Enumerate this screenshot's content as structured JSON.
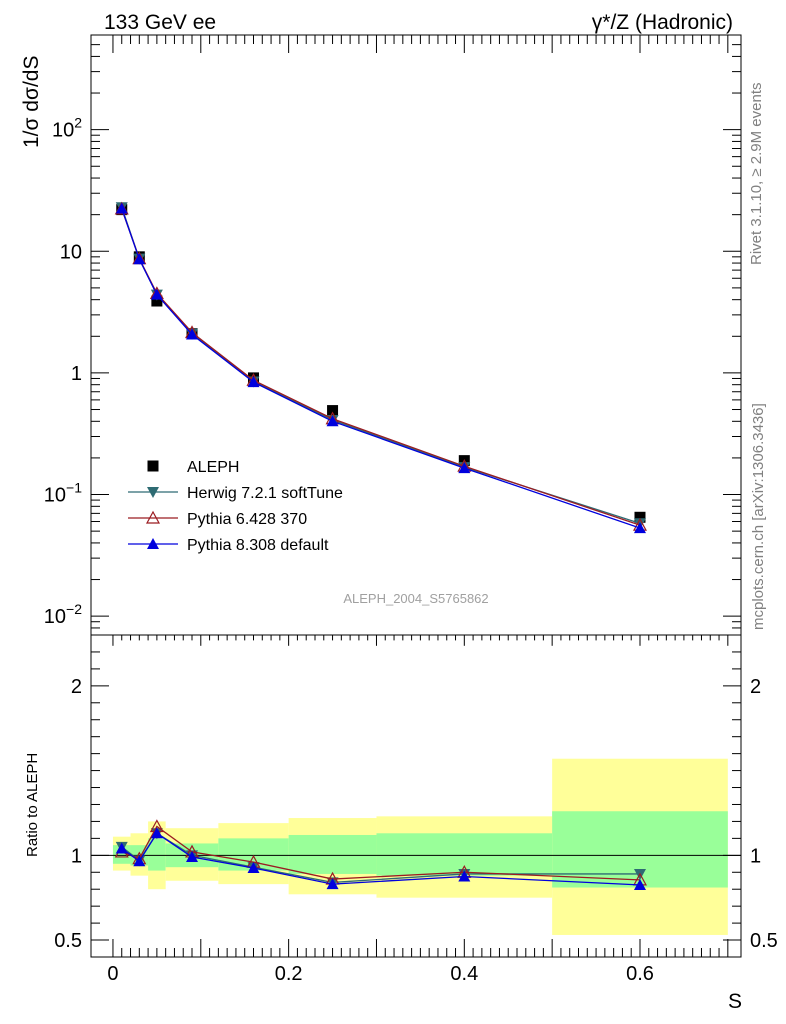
{
  "header": {
    "left_title": "133 GeV ee",
    "right_title": "γ*/Z (Hadronic)"
  },
  "side_labels": {
    "rivet": "Rivet 3.1.10, ≥ 2.9M events",
    "mcplots": "mcplots.cern.ch [arXiv:1306.3436]"
  },
  "colors": {
    "aleph": "#000000",
    "herwig": "#2e6b73",
    "pythia6": "#9b1c22",
    "pythia8": "#0000dd",
    "band_inner": "#99ff99",
    "band_outer": "#ffff99"
  },
  "chart_data": [
    {
      "type": "scatter",
      "title": "",
      "analysis_label": "ALEPH_2004_S5765862",
      "ylabel": "1/σ  dσ/dS",
      "y_scale": "log",
      "ylim": [
        0.007,
        600
      ],
      "xlim": [
        -0.025,
        0.715
      ],
      "y_ticks": [
        {
          "value": 0.01,
          "base": "10",
          "exp": "−2"
        },
        {
          "value": 0.1,
          "base": "10",
          "exp": "−1"
        },
        {
          "value": 1,
          "base": "1",
          "exp": ""
        },
        {
          "value": 10,
          "base": "10",
          "exp": ""
        },
        {
          "value": 100,
          "base": "10",
          "exp": "2"
        }
      ],
      "legend_position": "bottom-left",
      "series": [
        {
          "name": "ALEPH",
          "marker": "square",
          "x": [
            0.01,
            0.03,
            0.05,
            0.09,
            0.16,
            0.25,
            0.4,
            0.6
          ],
          "y": [
            22.0,
            9.0,
            3.9,
            2.1,
            0.91,
            0.49,
            0.19,
            0.065
          ]
        },
        {
          "name": "Herwig 7.2.1 softTune",
          "marker": "triangle-down",
          "x": [
            0.01,
            0.03,
            0.05,
            0.09,
            0.16,
            0.25,
            0.4,
            0.6
          ],
          "y": [
            23.0,
            8.7,
            4.4,
            2.1,
            0.85,
            0.41,
            0.168,
            0.058
          ]
        },
        {
          "name": "Pythia 6.428 370",
          "marker": "triangle-open",
          "x": [
            0.01,
            0.03,
            0.05,
            0.09,
            0.16,
            0.25,
            0.4,
            0.6
          ],
          "y": [
            22.3,
            8.7,
            4.5,
            2.15,
            0.87,
            0.42,
            0.171,
            0.056
          ]
        },
        {
          "name": "Pythia 8.308 default",
          "marker": "triangle-up",
          "x": [
            0.01,
            0.03,
            0.05,
            0.09,
            0.16,
            0.25,
            0.4,
            0.6
          ],
          "y": [
            22.5,
            8.6,
            4.4,
            2.07,
            0.84,
            0.4,
            0.165,
            0.053
          ]
        }
      ]
    },
    {
      "type": "line",
      "title": "",
      "ylabel": "Ratio to ALEPH",
      "xlabel": "S",
      "ylim": [
        0.4,
        2.3
      ],
      "xlim": [
        -0.025,
        0.715
      ],
      "x_ticks": [
        {
          "value": 0,
          "label": "0"
        },
        {
          "value": 0.2,
          "label": "0.2"
        },
        {
          "value": 0.4,
          "label": "0.4"
        },
        {
          "value": 0.6,
          "label": "0.6"
        }
      ],
      "y_ticks": [
        {
          "value": 0.5,
          "label": "0.5"
        },
        {
          "value": 1,
          "label": "1"
        },
        {
          "value": 2,
          "label": "2"
        }
      ],
      "bands": [
        {
          "x0": 0.0,
          "x1": 0.02,
          "inner": [
            0.95,
            1.06
          ],
          "outer": [
            0.91,
            1.11
          ]
        },
        {
          "x0": 0.02,
          "x1": 0.04,
          "inner": [
            0.94,
            1.06
          ],
          "outer": [
            0.88,
            1.13
          ]
        },
        {
          "x0": 0.04,
          "x1": 0.06,
          "inner": [
            0.91,
            1.1
          ],
          "outer": [
            0.8,
            1.2
          ]
        },
        {
          "x0": 0.06,
          "x1": 0.12,
          "inner": [
            0.93,
            1.07
          ],
          "outer": [
            0.85,
            1.16
          ]
        },
        {
          "x0": 0.12,
          "x1": 0.2,
          "inner": [
            0.91,
            1.1
          ],
          "outer": [
            0.83,
            1.19
          ]
        },
        {
          "x0": 0.2,
          "x1": 0.3,
          "inner": [
            0.89,
            1.12
          ],
          "outer": [
            0.77,
            1.22
          ]
        },
        {
          "x0": 0.3,
          "x1": 0.5,
          "inner": [
            0.88,
            1.13
          ],
          "outer": [
            0.75,
            1.23
          ]
        },
        {
          "x0": 0.5,
          "x1": 0.7,
          "inner": [
            0.81,
            1.26
          ],
          "outer": [
            0.53,
            1.57
          ]
        }
      ],
      "series": [
        {
          "name": "Herwig 7.2.1 softTune",
          "marker": "triangle-down",
          "x": [
            0.01,
            0.03,
            0.05,
            0.09,
            0.16,
            0.25,
            0.4,
            0.6
          ],
          "y": [
            1.05,
            0.97,
            1.13,
            1.0,
            0.93,
            0.84,
            0.89,
            0.89
          ]
        },
        {
          "name": "Pythia 6.428 370",
          "marker": "triangle-open",
          "x": [
            0.01,
            0.03,
            0.05,
            0.09,
            0.16,
            0.25,
            0.4,
            0.6
          ],
          "y": [
            1.02,
            0.98,
            1.17,
            1.02,
            0.96,
            0.86,
            0.9,
            0.855
          ]
        },
        {
          "name": "Pythia 8.308 default",
          "marker": "triangle-up",
          "x": [
            0.01,
            0.03,
            0.05,
            0.09,
            0.16,
            0.25,
            0.4,
            0.6
          ],
          "y": [
            1.04,
            0.965,
            1.13,
            0.99,
            0.925,
            0.83,
            0.875,
            0.825
          ]
        }
      ]
    }
  ]
}
